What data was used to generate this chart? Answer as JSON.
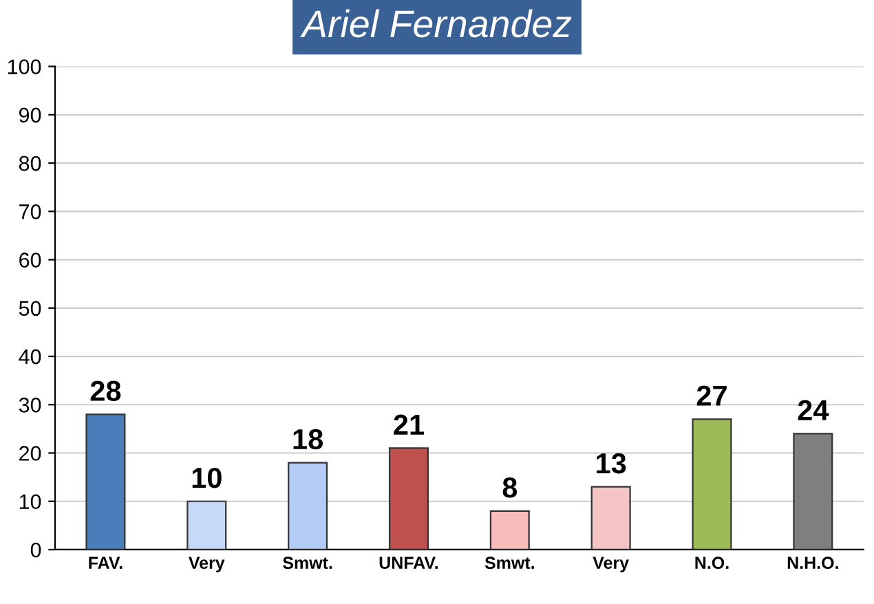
{
  "chart_data": {
    "type": "bar",
    "title": "Ariel Fernandez",
    "categories": [
      "FAV.",
      "Very",
      "Smwt.",
      "UNFAV.",
      "Smwt.",
      "Very",
      "N.O.",
      "N.H.O."
    ],
    "values": [
      28,
      10,
      18,
      21,
      8,
      13,
      27,
      24
    ],
    "colors": [
      "#4a7ebb",
      "#c6d9f7",
      "#b3cbf5",
      "#c0504d",
      "#f7bcbc",
      "#f5c4c4",
      "#9bbb59",
      "#7f7f7f"
    ],
    "ylim": [
      0,
      100
    ],
    "yticks": [
      0,
      10,
      20,
      30,
      40,
      50,
      60,
      70,
      80,
      90,
      100
    ],
    "grid": "y",
    "data_labels": true
  }
}
